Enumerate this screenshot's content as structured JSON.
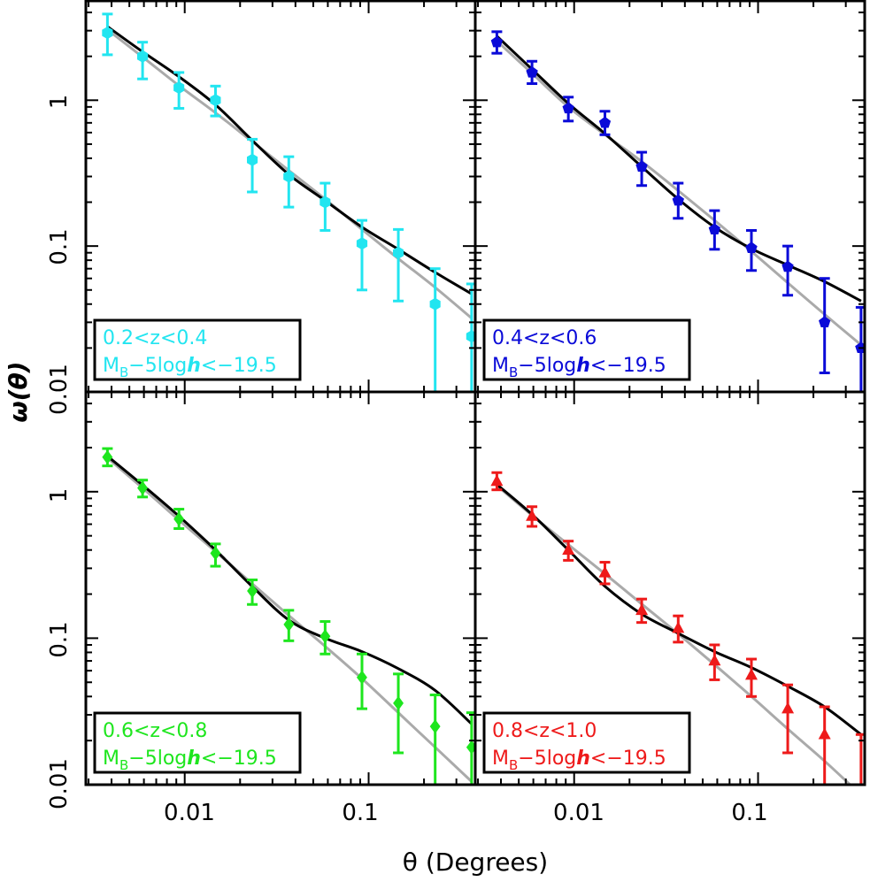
{
  "figure": {
    "ylabel": "ω(θ)",
    "xlabel": "θ (Degrees)",
    "x_ticks": [
      "0.01",
      "0.1"
    ],
    "y_ticks": [
      "0.01",
      "0.1",
      "1"
    ]
  },
  "chart_data": [
    {
      "type": "scatter",
      "panel": "top-left",
      "color": "#22e5f0",
      "marker": "hexagon",
      "legend_line1": "0.2<z<0.4",
      "legend_line2": "M_B−5logh<−19.5",
      "xscale": "log",
      "yscale": "log",
      "xlim": [
        0.0029,
        0.38
      ],
      "ylim": [
        0.01,
        4.8
      ],
      "x": [
        0.0038,
        0.0059,
        0.0093,
        0.0147,
        0.0233,
        0.0368,
        0.058,
        0.092,
        0.145,
        0.23,
        0.363
      ],
      "y": [
        2.9,
        2.0,
        1.22,
        1.0,
        0.39,
        0.3,
        0.2,
        0.104,
        0.09,
        0.04,
        0.024
      ],
      "yerr_low": [
        2.05,
        1.4,
        0.88,
        0.78,
        0.235,
        0.185,
        0.128,
        0.05,
        0.042,
        0.0095,
        0.0095
      ],
      "yerr_high": [
        3.9,
        2.5,
        1.55,
        1.25,
        0.54,
        0.41,
        0.27,
        0.15,
        0.13,
        0.07,
        0.055
      ],
      "model_black": [
        3.2,
        2.15,
        1.45,
        0.93,
        0.53,
        0.31,
        0.205,
        0.135,
        0.095,
        0.066,
        0.047
      ],
      "model_gray": [
        3.05,
        1.98,
        1.26,
        0.82,
        0.52,
        0.33,
        0.21,
        0.13,
        0.082,
        0.052,
        0.032
      ]
    },
    {
      "type": "scatter",
      "panel": "top-right",
      "color": "#0a0ad8",
      "marker": "pentagon",
      "legend_line1": "0.4<z<0.6",
      "legend_line2": "M_B−5logh<−19.5",
      "xscale": "log",
      "yscale": "log",
      "xlim": [
        0.0029,
        0.38
      ],
      "ylim": [
        0.01,
        4.8
      ],
      "x": [
        0.0038,
        0.0059,
        0.0093,
        0.0147,
        0.0233,
        0.0368,
        0.058,
        0.092,
        0.145,
        0.23,
        0.363
      ],
      "y": [
        2.5,
        1.55,
        0.88,
        0.7,
        0.35,
        0.205,
        0.13,
        0.097,
        0.072,
        0.03,
        0.02
      ],
      "yerr_low": [
        2.1,
        1.3,
        0.72,
        0.58,
        0.26,
        0.155,
        0.095,
        0.068,
        0.046,
        0.0135,
        0.0095
      ],
      "yerr_high": [
        2.95,
        1.85,
        1.05,
        0.84,
        0.44,
        0.27,
        0.175,
        0.128,
        0.1,
        0.06,
        0.038
      ],
      "model_black": [
        2.75,
        1.63,
        0.95,
        0.59,
        0.35,
        0.21,
        0.135,
        0.096,
        0.074,
        0.057,
        0.042
      ],
      "model_gray": [
        2.55,
        1.53,
        0.9,
        0.58,
        0.38,
        0.24,
        0.15,
        0.092,
        0.056,
        0.034,
        0.021
      ]
    },
    {
      "type": "scatter",
      "panel": "bottom-left",
      "color": "#1ee61e",
      "marker": "diamond",
      "legend_line1": "0.6<z<0.8",
      "legend_line2": "M_B−5logh<−19.5",
      "xscale": "log",
      "yscale": "log",
      "xlim": [
        0.0029,
        0.38
      ],
      "ylim": [
        0.01,
        4.8
      ],
      "x": [
        0.0038,
        0.0059,
        0.0093,
        0.0147,
        0.0233,
        0.0368,
        0.058,
        0.092,
        0.145,
        0.23,
        0.363
      ],
      "y": [
        1.72,
        1.06,
        0.65,
        0.38,
        0.21,
        0.124,
        0.103,
        0.054,
        0.036,
        0.025,
        0.018
      ],
      "yerr_low": [
        1.5,
        0.92,
        0.56,
        0.31,
        0.17,
        0.096,
        0.078,
        0.033,
        0.0165,
        0.0095,
        0.0095
      ],
      "yerr_high": [
        1.97,
        1.2,
        0.76,
        0.44,
        0.25,
        0.155,
        0.13,
        0.078,
        0.057,
        0.041,
        0.031
      ],
      "model_black": [
        1.75,
        1.11,
        0.68,
        0.4,
        0.225,
        0.133,
        0.1,
        0.081,
        0.062,
        0.044,
        0.026
      ],
      "model_gray": [
        1.7,
        1.06,
        0.64,
        0.39,
        0.235,
        0.143,
        0.088,
        0.053,
        0.031,
        0.018,
        0.0105
      ]
    },
    {
      "type": "scatter",
      "panel": "bottom-right",
      "color": "#ee1a1a",
      "marker": "triangle",
      "legend_line1": "0.8<z<1.0",
      "legend_line2": "M_B−5logh<−19.5",
      "xscale": "log",
      "yscale": "log",
      "xlim": [
        0.0029,
        0.38
      ],
      "ylim": [
        0.01,
        4.8
      ],
      "x": [
        0.0038,
        0.0059,
        0.0093,
        0.0147,
        0.0233,
        0.0368,
        0.058,
        0.092,
        0.145,
        0.23,
        0.363
      ],
      "y": [
        1.18,
        0.68,
        0.4,
        0.28,
        0.155,
        0.117,
        0.07,
        0.056,
        0.033,
        0.022,
        0.0095
      ],
      "yerr_low": [
        1.03,
        0.58,
        0.34,
        0.235,
        0.128,
        0.094,
        0.052,
        0.04,
        0.0165,
        0.0095,
        0.0095
      ],
      "yerr_high": [
        1.35,
        0.79,
        0.46,
        0.33,
        0.185,
        0.142,
        0.09,
        0.072,
        0.048,
        0.034,
        0.022
      ],
      "model_black": [
        1.12,
        0.7,
        0.4,
        0.226,
        0.146,
        0.108,
        0.081,
        0.063,
        0.047,
        0.034,
        0.022
      ],
      "model_gray": [
        1.1,
        0.69,
        0.435,
        0.275,
        0.171,
        0.107,
        0.066,
        0.04,
        0.024,
        0.0145,
        0.0085
      ]
    }
  ]
}
